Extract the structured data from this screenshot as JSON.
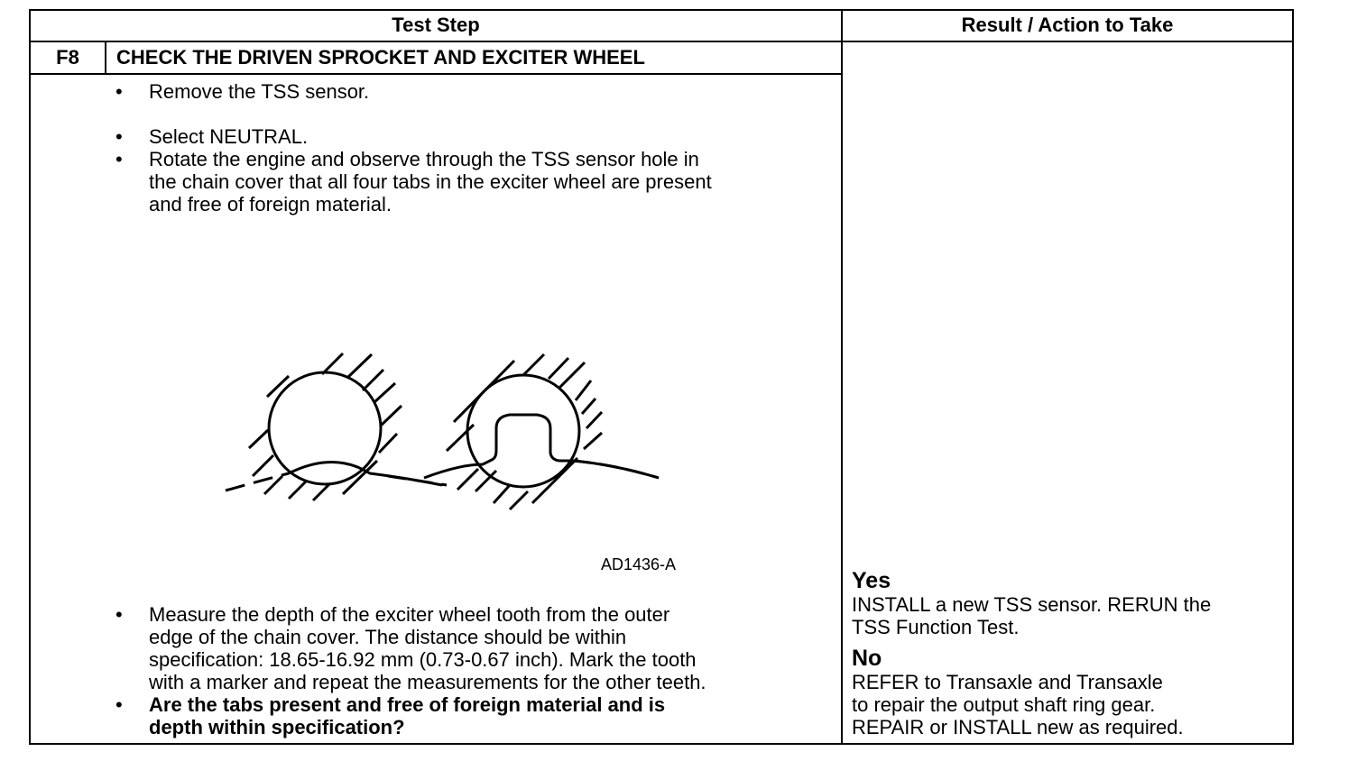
{
  "header": {
    "test_step": "Test Step",
    "result": "Result / Action to Take"
  },
  "step": {
    "id": "F8",
    "title": "CHECK THE DRIVEN SPROCKET AND EXCITER WHEEL"
  },
  "bullets": [
    "Remove the TSS sensor.",
    "Select NEUTRAL.",
    "Rotate the engine and observe through the TSS sensor hole in\nthe chain cover that all four tabs in the exciter wheel are present\nand free of foreign material.",
    "Measure the depth of the exciter wheel tooth from the outer\nedge of the chain cover. The distance should be within\nspecification: 18.65-16.92 mm (0.73-0.67 inch). Mark the tooth\nwith a marker and repeat the measurements for the other teeth.",
    "Are the tabs present and free of foreign material and is\ndepth within specification?"
  ],
  "bullet_char": "•",
  "figure": {
    "label": "AD1436-A"
  },
  "result": {
    "yes_label": "Yes",
    "yes_text": "INSTALL a new TSS sensor. RERUN the\nTSS Function Test.",
    "no_label": "No",
    "no_text": "REFER to Transaxle and Transaxle\nto repair the output shaft ring gear.\nREPAIR or INSTALL new as required."
  }
}
